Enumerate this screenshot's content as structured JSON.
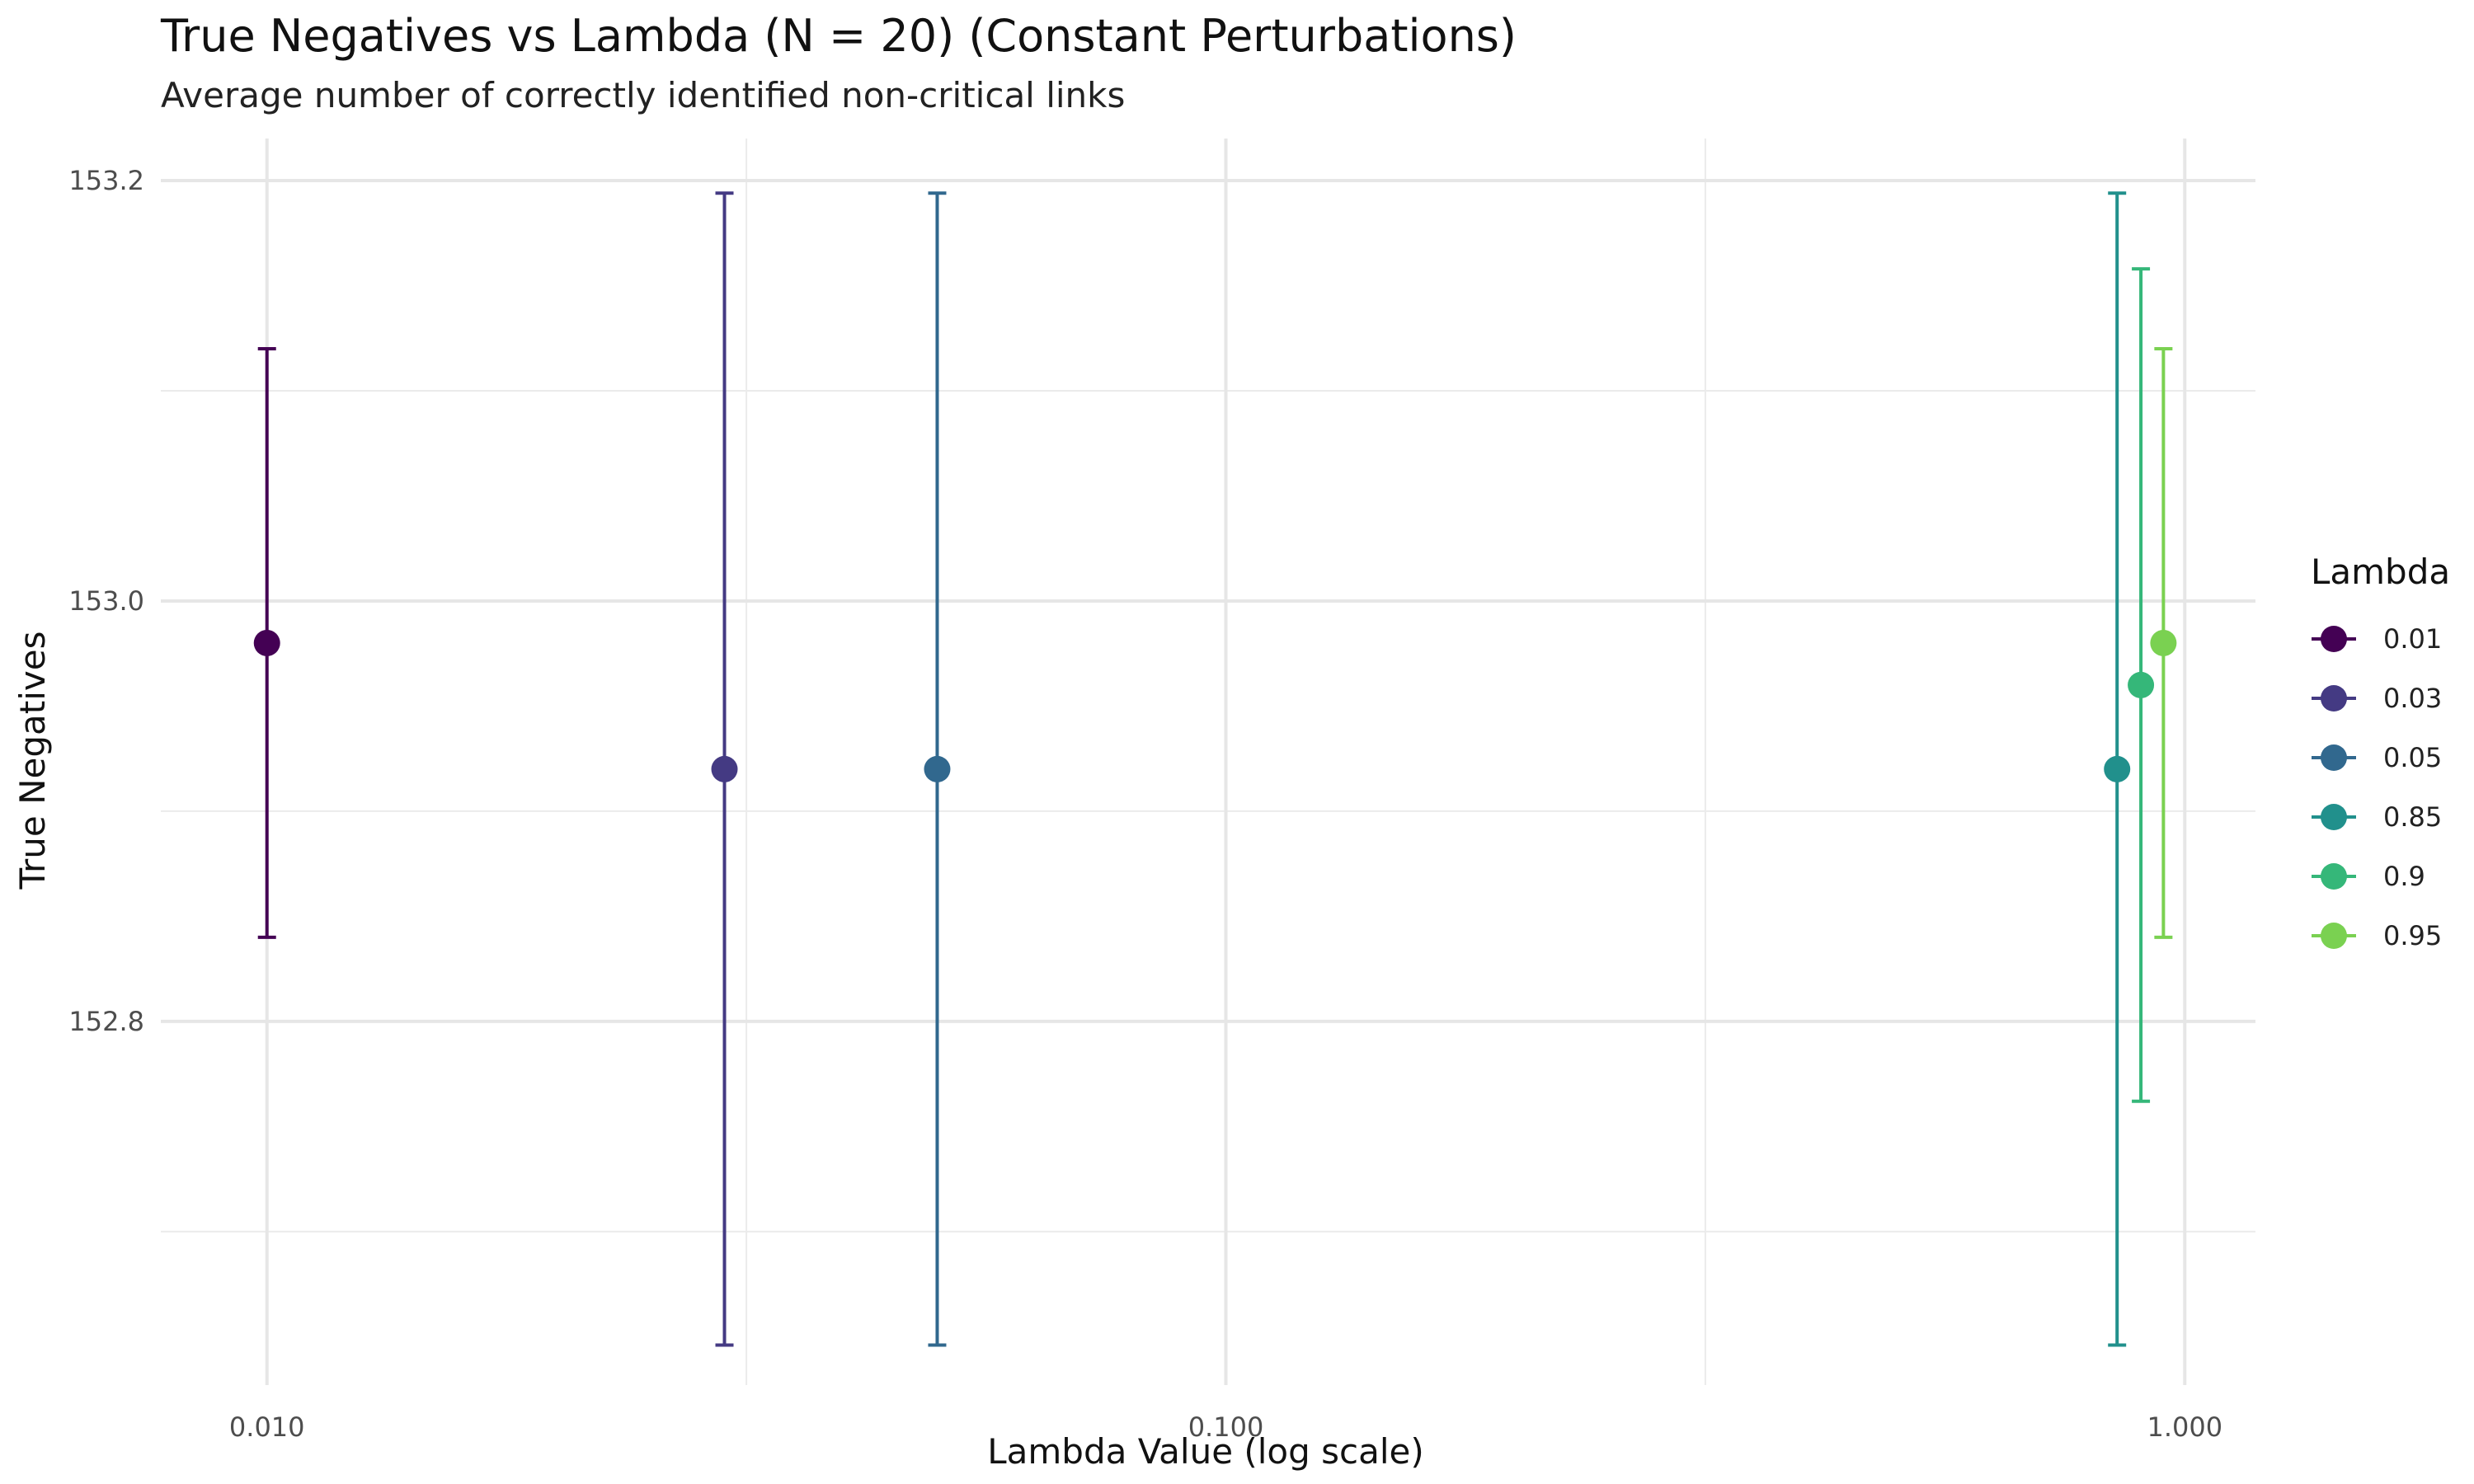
{
  "chart_data": {
    "type": "scatter",
    "title": "True Negatives vs Lambda (N = 20) (Constant Perturbations)",
    "subtitle": "Average number of correctly identified non-critical links",
    "xlabel": "Lambda Value (log scale)",
    "ylabel": "True Negatives",
    "x_scale": "log",
    "xlim": [
      0.00775,
      1.185
    ],
    "ylim": [
      152.627,
      153.22
    ],
    "x_ticks": [
      0.01,
      0.1,
      1
    ],
    "x_tick_labels": [
      "0.010",
      "0.100",
      "1.000"
    ],
    "y_ticks": [
      152.8,
      153.0,
      153.2
    ],
    "y_tick_labels": [
      "152.8",
      "153.0",
      "153.2"
    ],
    "y_minor_gridlines": [
      152.7,
      152.9,
      153.1
    ],
    "grid": true,
    "legend_title": "Lambda",
    "legend_position": "right",
    "series": [
      {
        "name": "0.01",
        "color": "#440154",
        "x": 0.01,
        "y": 152.98,
        "ymin": 152.84,
        "ymax": 153.12
      },
      {
        "name": "0.03",
        "color": "#443a83",
        "x": 0.03,
        "y": 152.92,
        "ymin": 152.646,
        "ymax": 153.194
      },
      {
        "name": "0.05",
        "color": "#31688e",
        "x": 0.05,
        "y": 152.92,
        "ymin": 152.646,
        "ymax": 153.194
      },
      {
        "name": "0.85",
        "color": "#21908c",
        "x": 0.85,
        "y": 152.92,
        "ymin": 152.646,
        "ymax": 153.194
      },
      {
        "name": "0.9",
        "color": "#35b779",
        "x": 0.9,
        "y": 152.96,
        "ymin": 152.762,
        "ymax": 153.158
      },
      {
        "name": "0.95",
        "color": "#7ad151",
        "x": 0.95,
        "y": 152.98,
        "ymin": 152.84,
        "ymax": 153.12
      }
    ]
  }
}
